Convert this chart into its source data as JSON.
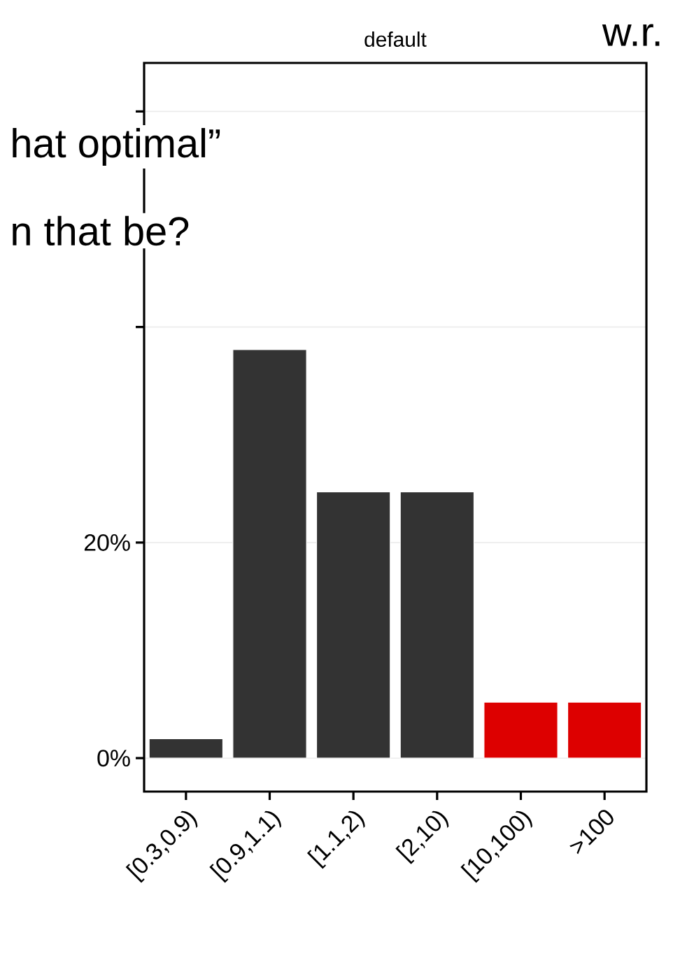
{
  "chart_data": {
    "type": "bar",
    "title": "default",
    "categories": [
      "[0.3,0.9)",
      "[0.9,1.1)",
      "[1.1,2)",
      "[2,10)",
      "[10,100)",
      ">100"
    ],
    "values": [
      1.8,
      37.9,
      24.7,
      24.7,
      5.2,
      5.2
    ],
    "colors": [
      "#333333",
      "#333333",
      "#333333",
      "#333333",
      "#dd0000",
      "#dd0000"
    ],
    "ylim": [
      -3.1,
      64.5
    ],
    "yticks": [
      {
        "value": 0,
        "label": "0%"
      },
      {
        "value": 20,
        "label": "20%"
      },
      {
        "value": 40,
        "label": null
      },
      {
        "value": 60,
        "label": null
      }
    ],
    "grid": "y",
    "annotations": [
      "hat optimal”",
      "n that be?",
      "w.r."
    ]
  }
}
